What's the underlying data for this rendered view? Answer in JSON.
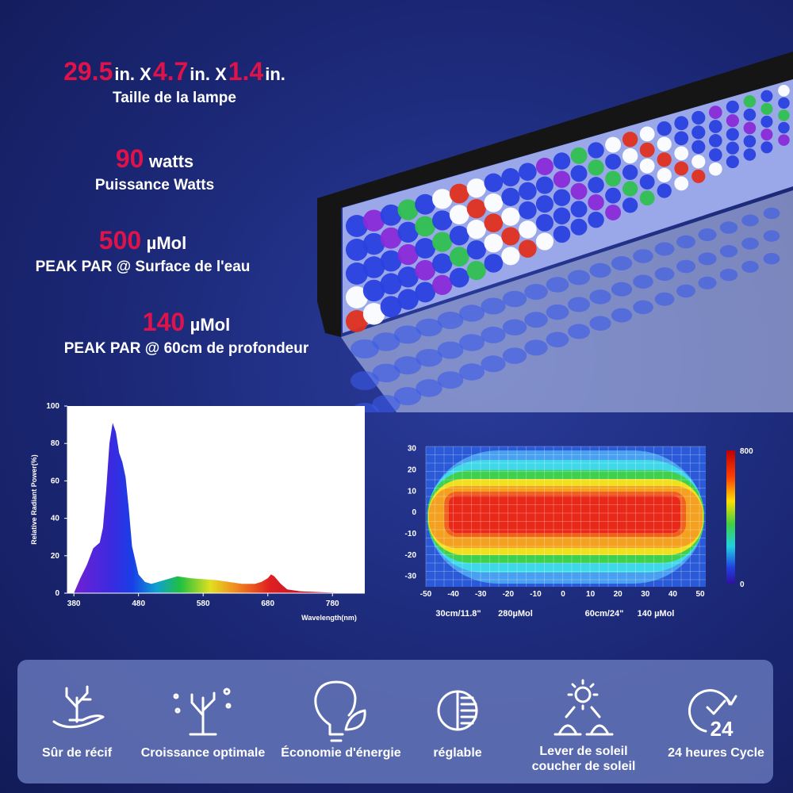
{
  "specs": [
    {
      "headline": [
        "29.5",
        "in. X",
        "4.7",
        "in. X",
        "1.4",
        "in."
      ],
      "label": "Taille de la lampe"
    },
    {
      "headline": [
        "90",
        "watts"
      ],
      "label": "Puissance Watts"
    },
    {
      "headline": [
        "500",
        "µMol"
      ],
      "label": "PEAK PAR @ Surface de l'eau"
    },
    {
      "headline": [
        "140",
        "µMol"
      ],
      "label": "PEAK PAR @ 60cm de profondeur"
    }
  ],
  "chart_data": [
    {
      "type": "area",
      "ylabel": "Relative Radiant Power(%)",
      "xlabel": "Wavelength(nm)",
      "x": [
        380,
        390,
        400,
        410,
        420,
        425,
        430,
        435,
        440,
        445,
        450,
        455,
        460,
        465,
        470,
        480,
        490,
        500,
        520,
        540,
        560,
        600,
        640,
        660,
        670,
        680,
        685,
        690,
        700,
        710,
        730,
        800
      ],
      "values": [
        0,
        8,
        15,
        24,
        27,
        35,
        55,
        80,
        91,
        86,
        75,
        70,
        62,
        45,
        25,
        10,
        6,
        5,
        7,
        9,
        8,
        7,
        5,
        5,
        6,
        8,
        10,
        9,
        5,
        2,
        1,
        0
      ],
      "xlim": [
        370,
        830
      ],
      "ylim": [
        0,
        100
      ],
      "xticks": [
        380,
        480,
        580,
        680,
        780
      ],
      "yticks": [
        0,
        20,
        40,
        60,
        80,
        100
      ]
    },
    {
      "type": "heatmap",
      "xlim": [
        -50,
        50
      ],
      "ylim": [
        -35,
        31
      ],
      "xticks": [
        -50,
        -40,
        -30,
        -20,
        -10,
        0,
        10,
        20,
        30,
        40,
        50
      ],
      "yticks": [
        30,
        20,
        10,
        0,
        -10,
        -20,
        -30
      ],
      "colorbar": {
        "lim": [
          0,
          800
        ],
        "ticks": [
          800,
          0
        ]
      },
      "captions": [
        "30cm/11.8\"",
        "280µMol",
        "60cm/24\"",
        "140 µMol"
      ]
    }
  ],
  "features": [
    {
      "label": "Sûr de récif"
    },
    {
      "label": "Croissance optimale"
    },
    {
      "label": "Économie d'énergie"
    },
    {
      "label": "réglable"
    },
    {
      "label": "Lever de soleil",
      "label2": "coucher de soleil"
    },
    {
      "label": "24 heures Cycle",
      "icon_text": "24"
    }
  ]
}
